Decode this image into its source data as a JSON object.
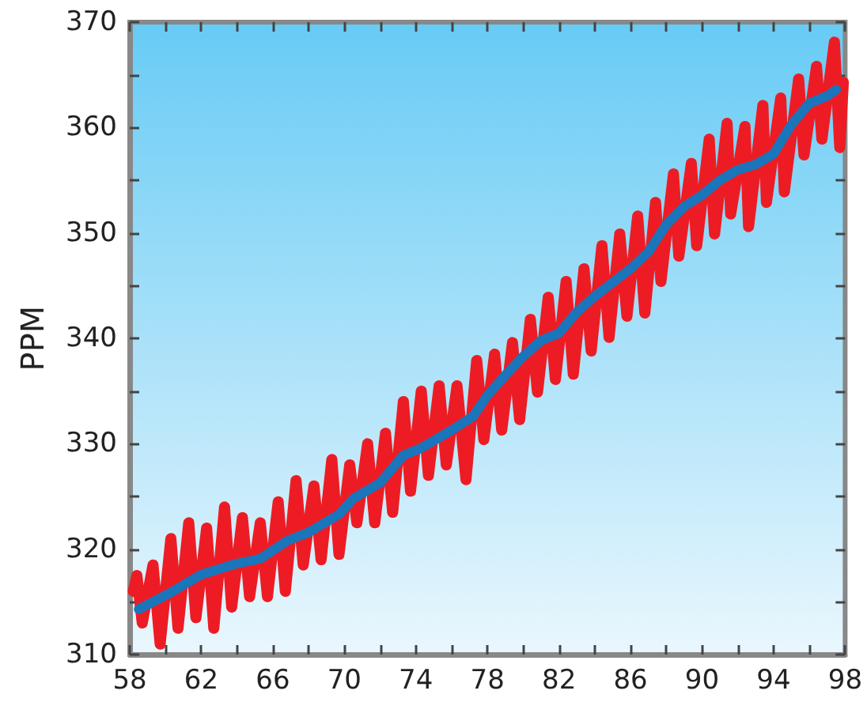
{
  "chart_data": {
    "type": "line",
    "ylabel": "PPM",
    "xlim": [
      58,
      98
    ],
    "ylim": [
      310,
      370
    ],
    "xticks": [
      58,
      {
        "value": 60,
        "label": null
      },
      62,
      {
        "value": 64,
        "label": null
      },
      66,
      {
        "value": 68,
        "label": null
      },
      70,
      {
        "value": 72,
        "label": null
      },
      74,
      {
        "value": 76,
        "label": null
      },
      78,
      {
        "value": 80,
        "label": null
      },
      82,
      {
        "value": 84,
        "label": null
      },
      86,
      {
        "value": 88,
        "label": null
      },
      90,
      {
        "value": 92,
        "label": null
      },
      94,
      {
        "value": 96,
        "label": null
      },
      98
    ],
    "yticks": [
      310,
      {
        "value": 315,
        "label": null
      },
      320,
      {
        "value": 325,
        "label": null
      },
      330,
      {
        "value": 335,
        "label": null
      },
      340,
      {
        "value": 345,
        "label": null
      },
      350,
      {
        "value": 355,
        "label": null
      },
      360,
      {
        "value": 365,
        "label": null
      },
      370
    ],
    "grid": false,
    "marker": "none",
    "line_style": "solid",
    "series": [
      {
        "color": "#ed1c24",
        "x": [
          58.2,
          58.4,
          58.7,
          59.3,
          59.7,
          60.3,
          60.7,
          61.3,
          61.7,
          62.3,
          62.7,
          63.3,
          63.7,
          64.3,
          64.7,
          65.3,
          65.7,
          66.3,
          66.7,
          67.3,
          67.7,
          68.3,
          68.7,
          69.3,
          69.7,
          70.3,
          70.7,
          71.3,
          71.7,
          72.3,
          72.7,
          73.3,
          73.7,
          74.3,
          74.7,
          75.3,
          75.7,
          76.3,
          76.8,
          77.4,
          77.8,
          78.4,
          78.8,
          79.4,
          79.8,
          80.4,
          80.8,
          81.4,
          81.8,
          82.4,
          82.8,
          83.4,
          83.8,
          84.4,
          84.8,
          85.4,
          85.8,
          86.4,
          86.8,
          87.4,
          87.7,
          88.4,
          88.7,
          89.4,
          89.7,
          90.4,
          90.7,
          91.4,
          91.6,
          92.4,
          92.6,
          93.4,
          93.6,
          94.4,
          94.6,
          95.4,
          95.7,
          96.4,
          96.7,
          97.4,
          97.7,
          97.9
        ],
        "values": [
          316,
          317.5,
          313,
          318.5,
          311,
          321,
          312.5,
          322.5,
          313.5,
          322,
          312.5,
          324,
          314.5,
          323,
          315.5,
          322.5,
          315.5,
          324.5,
          316,
          326.5,
          318.5,
          326,
          319,
          328.5,
          319.5,
          328,
          322.5,
          330,
          322.5,
          331,
          323.5,
          334,
          325.5,
          335,
          327,
          335.5,
          328,
          335.5,
          326.6,
          337.9,
          330.4,
          338.5,
          331.3,
          339.6,
          332.3,
          341.8,
          334.9,
          343.9,
          336.1,
          345.4,
          336.6,
          346.6,
          338.8,
          348.8,
          340.1,
          349.9,
          342.1,
          351.6,
          342.4,
          352.9,
          345.4,
          355.6,
          347.8,
          356.6,
          348.8,
          358.9,
          349.9,
          360.4,
          351.8,
          360.1,
          350.6,
          362.1,
          352.9,
          362.8,
          353.9,
          364.6,
          357.4,
          365.8,
          358.9,
          368.1,
          358.1,
          364.3
        ]
      },
      {
        "color": "#1a75bb",
        "x": [
          58.5,
          60.2,
          62,
          63.9,
          65.3,
          66.8,
          68,
          69.7,
          70.5,
          72,
          73.3,
          74.3,
          76,
          77.2,
          78,
          79,
          80,
          81,
          82,
          83,
          84,
          85,
          86,
          87,
          88,
          89,
          90,
          91,
          92,
          93,
          94,
          95,
          96,
          97,
          97.5
        ],
        "values": [
          314.3,
          315.8,
          317.6,
          318.6,
          319.1,
          320.8,
          321.6,
          323.3,
          324.8,
          326.3,
          328.9,
          329.6,
          331.3,
          332.6,
          334.6,
          336.5,
          338.3,
          339.8,
          340.5,
          342.5,
          344,
          345.3,
          346.6,
          348.2,
          350.8,
          352.5,
          353.6,
          355,
          356,
          356.5,
          357.5,
          360.3,
          362.3,
          363,
          363.6
        ]
      }
    ]
  }
}
